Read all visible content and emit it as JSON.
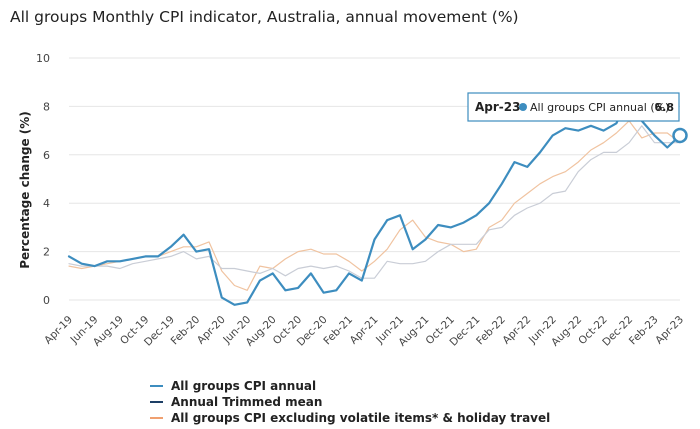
{
  "title": "All groups Monthly CPI indicator, Australia, annual movement (%)",
  "colors": {
    "cpi": "#3d8dbf",
    "trimmed": "#1d3f66",
    "excl": "#f0c3a0",
    "gray": "#c9cdd6",
    "grid": "#e6e6e6"
  },
  "legend": {
    "items": [
      "All groups CPI annual",
      "Annual Trimmed mean",
      "All groups CPI excluding volatile items* & holiday travel"
    ]
  },
  "tooltip": {
    "date": "Apr-23",
    "label": "All groups CPI annual (%):",
    "value": "6.8"
  },
  "chart_data": {
    "type": "line",
    "title": "All groups Monthly CPI indicator, Australia, annual movement (%)",
    "ylabel": "Percentage change (%)",
    "ylim": [
      -0.6,
      10
    ],
    "yticks": [
      "0",
      "2",
      "4",
      "6",
      "8",
      "10"
    ],
    "x": [
      "Apr-19",
      "May-19",
      "Jun-19",
      "Jul-19",
      "Aug-19",
      "Sep-19",
      "Oct-19",
      "Nov-19",
      "Dec-19",
      "Jan-20",
      "Feb-20",
      "Mar-20",
      "Apr-20",
      "May-20",
      "Jun-20",
      "Jul-20",
      "Aug-20",
      "Sep-20",
      "Oct-20",
      "Nov-20",
      "Dec-20",
      "Jan-21",
      "Feb-21",
      "Mar-21",
      "Apr-21",
      "May-21",
      "Jun-21",
      "Jul-21",
      "Aug-21",
      "Sep-21",
      "Oct-21",
      "Nov-21",
      "Dec-21",
      "Jan-22",
      "Feb-22",
      "Mar-22",
      "Apr-22",
      "May-22",
      "Jun-22",
      "Jul-22",
      "Aug-22",
      "Sep-22",
      "Oct-22",
      "Nov-22",
      "Dec-22",
      "Jan-23",
      "Feb-23",
      "Mar-23",
      "Apr-23"
    ],
    "xticks": [
      "Apr-19",
      "Jun-19",
      "Aug-19",
      "Oct-19",
      "Dec-19",
      "Feb-20",
      "Apr-20",
      "Jun-20",
      "Aug-20",
      "Oct-20",
      "Dec-20",
      "Feb-21",
      "Apr-21",
      "Jun-21",
      "Aug-21",
      "Oct-21",
      "Dec-21",
      "Feb-22",
      "Apr-22",
      "Jun-22",
      "Aug-22",
      "Oct-22",
      "Dec-22",
      "Feb-23",
      "Apr-23"
    ],
    "series": [
      {
        "name": "All groups CPI excluding volatile items* & holiday travel",
        "color_key": "excl",
        "values": [
          1.4,
          1.3,
          1.4,
          1.5,
          1.6,
          1.7,
          1.8,
          1.8,
          2.0,
          2.2,
          2.2,
          2.4,
          1.2,
          0.6,
          0.4,
          1.4,
          1.3,
          1.7,
          2.0,
          2.1,
          1.9,
          1.9,
          1.6,
          1.2,
          1.6,
          2.1,
          2.9,
          3.3,
          2.6,
          2.4,
          2.3,
          2.0,
          2.1,
          3.0,
          3.3,
          4.0,
          4.4,
          4.8,
          5.1,
          5.3,
          5.7,
          6.2,
          6.5,
          6.9,
          7.4,
          6.7,
          6.9,
          6.9,
          6.5
        ]
      },
      {
        "name": "Annual Trimmed mean",
        "color_key": "gray",
        "values": [
          1.5,
          1.4,
          1.4,
          1.4,
          1.3,
          1.5,
          1.6,
          1.7,
          1.8,
          2.0,
          1.7,
          1.8,
          1.3,
          1.3,
          1.2,
          1.1,
          1.3,
          1.0,
          1.3,
          1.4,
          1.3,
          1.4,
          1.2,
          0.9,
          0.9,
          1.6,
          1.5,
          1.5,
          1.6,
          2.0,
          2.3,
          2.3,
          2.3,
          2.9,
          3.0,
          3.5,
          3.8,
          4.0,
          4.4,
          4.5,
          5.3,
          5.8,
          6.1,
          6.1,
          6.5,
          7.2,
          6.5,
          6.5,
          6.5
        ]
      },
      {
        "name": "All groups CPI annual",
        "color_key": "cpi",
        "values": [
          1.8,
          1.5,
          1.4,
          1.6,
          1.6,
          1.7,
          1.8,
          1.8,
          2.2,
          2.7,
          2.0,
          2.1,
          0.1,
          -0.2,
          -0.1,
          0.8,
          1.1,
          0.4,
          0.5,
          1.1,
          0.3,
          0.4,
          1.1,
          0.8,
          2.5,
          3.3,
          3.5,
          2.1,
          2.5,
          3.1,
          3.0,
          3.2,
          3.5,
          4.0,
          4.8,
          5.7,
          5.5,
          6.1,
          6.8,
          7.1,
          7.0,
          7.2,
          7.0,
          7.3,
          8.4,
          7.4,
          6.8,
          6.3,
          6.8
        ]
      }
    ]
  }
}
